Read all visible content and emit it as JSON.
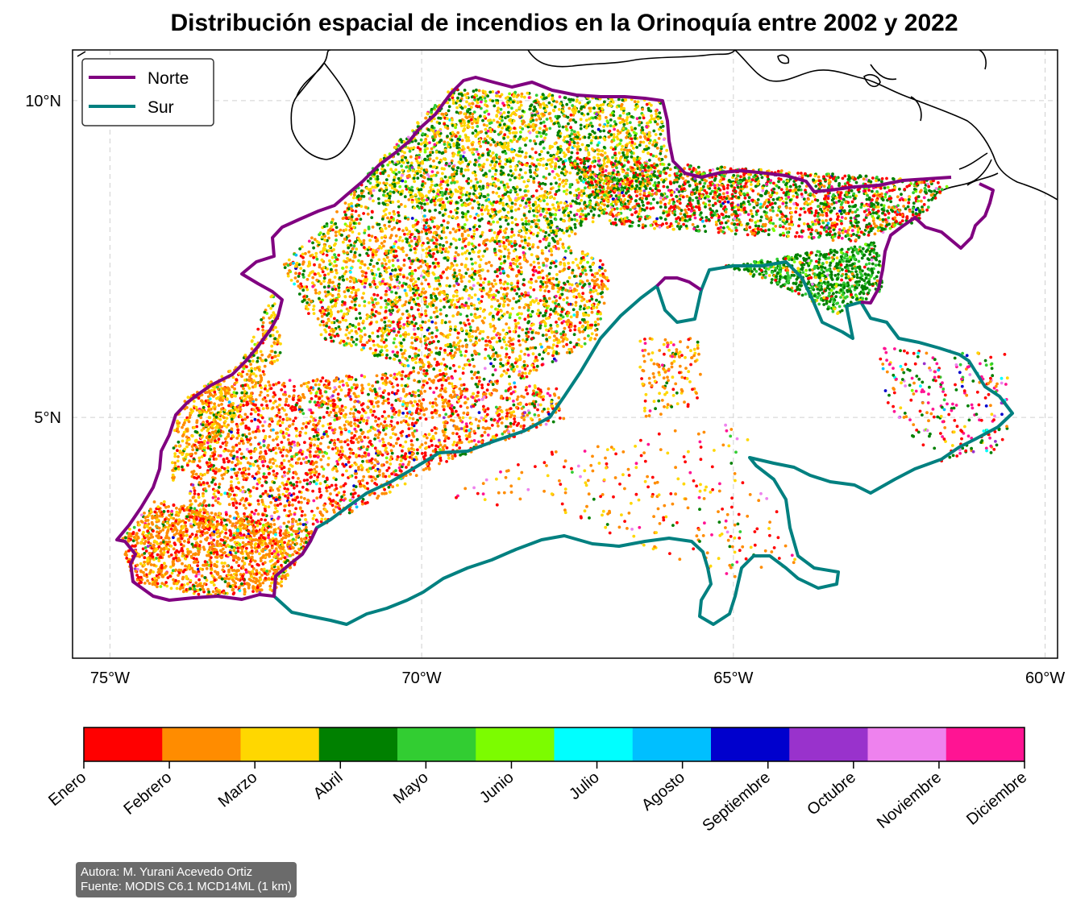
{
  "title": "Distribución espacial de incendios en la Orinoquía entre 2002 y 2022",
  "map": {
    "lon_range": [
      -75.6,
      -59.8
    ],
    "lat_range": [
      1.2,
      10.8
    ],
    "x_ticks": [
      {
        "lon": -75,
        "label": "75°W"
      },
      {
        "lon": -70,
        "label": "70°W"
      },
      {
        "lon": -65,
        "label": "65°W"
      },
      {
        "lon": -60,
        "label": "60°W"
      }
    ],
    "y_ticks": [
      {
        "lat": 10,
        "label": "10°N"
      },
      {
        "lat": 5,
        "label": "5°N"
      }
    ],
    "grid": true,
    "legend": {
      "position": "upper-left",
      "entries": [
        {
          "label": "Norte",
          "color": "#800080"
        },
        {
          "label": "Sur",
          "color": "#008080"
        }
      ]
    }
  },
  "colorbar": {
    "months": [
      {
        "label": "Enero",
        "color": "#ff0000"
      },
      {
        "label": "Febrero",
        "color": "#ff8c00"
      },
      {
        "label": "Marzo",
        "color": "#ffd700"
      },
      {
        "label": "Abril",
        "color": "#008000"
      },
      {
        "label": "Mayo",
        "color": "#32cd32"
      },
      {
        "label": "Junio",
        "color": "#7cfc00"
      },
      {
        "label": "Julio",
        "color": "#00ffff"
      },
      {
        "label": "Agosto",
        "color": "#00bfff"
      },
      {
        "label": "Septiembre",
        "color": "#0000cd"
      },
      {
        "label": "Octubre",
        "color": "#9932cc"
      },
      {
        "label": "Noviembre",
        "color": "#ee82ee"
      },
      {
        "label": "Diciembre",
        "color": "#ff1493"
      }
    ]
  },
  "credits": {
    "author": "Autora: M. Yurani Acevedo Ortiz",
    "source": "Fuente: MODIS C6.1 MCD14ML (1 km)"
  }
}
